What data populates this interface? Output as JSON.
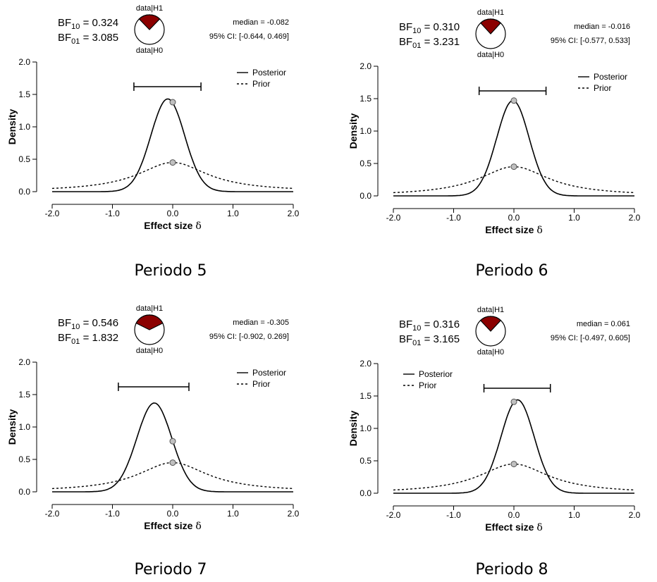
{
  "chart_data": [
    {
      "type": "line",
      "caption": "Periodo 5",
      "bf10_value": "0.324",
      "bf01_value": "3.085",
      "median_text": "median = -0.082",
      "ci_text": "95% CI: [-0.644, 0.469]",
      "pie_top_label": "data|H1",
      "pie_bottom_label": "data|H0",
      "pie_h1_fraction": 0.245,
      "ci": [
        -0.644,
        0.469
      ],
      "posterior_peak": {
        "x": -0.082,
        "y": 1.43,
        "sd": 0.28
      },
      "posterior_at_zero": 1.38,
      "prior_at_zero": 0.45,
      "xlabel": "Effect size",
      "ylabel": "Density",
      "xlim": [
        -2.0,
        2.0
      ],
      "ylim": [
        0,
        2.0
      ],
      "xticks": [
        "-2.0",
        "-1.0",
        "0.0",
        "1.0",
        "2.0"
      ],
      "yticks": [
        "0.0",
        "0.5",
        "1.0",
        "1.5",
        "2.0"
      ],
      "legend_position": "top-right",
      "series": [
        {
          "name": "Posterior",
          "style": "solid"
        },
        {
          "name": "Prior",
          "style": "dotted"
        }
      ]
    },
    {
      "type": "line",
      "caption": "Periodo 6",
      "bf10_value": "0.310",
      "bf01_value": "3.231",
      "median_text": "median = -0.016",
      "ci_text": "95% CI: [-0.577, 0.533]",
      "pie_top_label": "data|H1",
      "pie_bottom_label": "data|H0",
      "pie_h1_fraction": 0.237,
      "ci": [
        -0.577,
        0.533
      ],
      "posterior_peak": {
        "x": -0.016,
        "y": 1.47,
        "sd": 0.27
      },
      "posterior_at_zero": 1.47,
      "prior_at_zero": 0.45,
      "xlabel": "Effect size",
      "ylabel": "Density",
      "xlim": [
        -2.0,
        2.0
      ],
      "ylim": [
        0,
        2.0
      ],
      "xticks": [
        "-2.0",
        "-1.0",
        "0.0",
        "1.0",
        "2.0"
      ],
      "yticks": [
        "0.0",
        "0.5",
        "1.0",
        "1.5",
        "2.0"
      ],
      "legend_position": "top-right",
      "series": [
        {
          "name": "Posterior",
          "style": "solid"
        },
        {
          "name": "Prior",
          "style": "dotted"
        }
      ]
    },
    {
      "type": "line",
      "caption": "Periodo 7",
      "bf10_value": "0.546",
      "bf01_value": "1.832",
      "median_text": "median = -0.305",
      "ci_text": "95% CI: [-0.902, 0.269]",
      "pie_top_label": "data|H1",
      "pie_bottom_label": "data|H0",
      "pie_h1_fraction": 0.353,
      "ci": [
        -0.902,
        0.269
      ],
      "posterior_peak": {
        "x": -0.305,
        "y": 1.37,
        "sd": 0.29
      },
      "posterior_at_zero": 0.78,
      "prior_at_zero": 0.45,
      "xlabel": "Effect size",
      "ylabel": "Density",
      "xlim": [
        -2.0,
        2.0
      ],
      "ylim": [
        0,
        2.0
      ],
      "xticks": [
        "-2.0",
        "-1.0",
        "0.0",
        "1.0",
        "2.0"
      ],
      "yticks": [
        "0.0",
        "0.5",
        "1.0",
        "1.5",
        "2.0"
      ],
      "legend_position": "top-right",
      "series": [
        {
          "name": "Posterior",
          "style": "solid"
        },
        {
          "name": "Prior",
          "style": "dotted"
        }
      ]
    },
    {
      "type": "line",
      "caption": "Periodo 8",
      "bf10_value": "0.316",
      "bf01_value": "3.165",
      "median_text": "median = 0.061",
      "ci_text": "95% CI: [-0.497, 0.605]",
      "pie_top_label": "data|H1",
      "pie_bottom_label": "data|H0",
      "pie_h1_fraction": 0.24,
      "ci": [
        -0.497,
        0.605
      ],
      "posterior_peak": {
        "x": 0.061,
        "y": 1.44,
        "sd": 0.275
      },
      "posterior_at_zero": 1.41,
      "prior_at_zero": 0.45,
      "xlabel": "Effect size",
      "ylabel": "Density",
      "xlim": [
        -2.0,
        2.0
      ],
      "ylim": [
        0,
        2.0
      ],
      "xticks": [
        "-2.0",
        "-1.0",
        "0.0",
        "1.0",
        "2.0"
      ],
      "yticks": [
        "0.0",
        "0.5",
        "1.0",
        "1.5",
        "2.0"
      ],
      "legend_position": "top-left",
      "series": [
        {
          "name": "Posterior",
          "style": "solid"
        },
        {
          "name": "Prior",
          "style": "dotted"
        }
      ]
    }
  ],
  "colors": {
    "pie_h1": "#8b0000",
    "pie_h0": "#ffffff",
    "point_fill": "#c0c0c0",
    "line": "#000000"
  }
}
